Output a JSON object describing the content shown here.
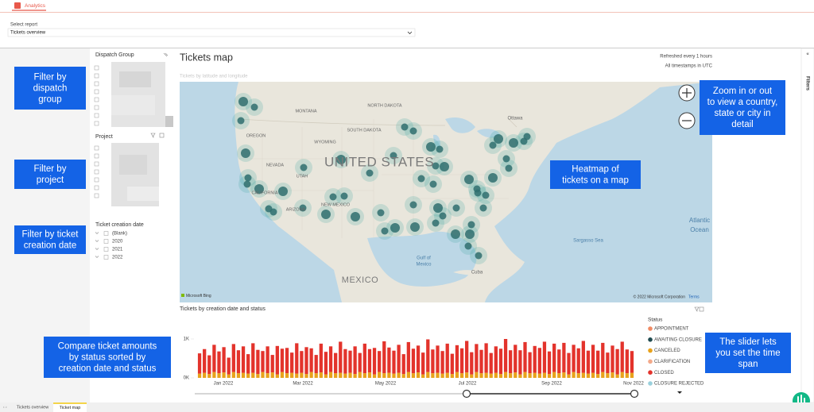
{
  "app_bar": {
    "tab": "Analytics"
  },
  "report_select": {
    "label": "Select report",
    "value": "Tickets overview"
  },
  "filters": {
    "dispatch_group": "Dispatch Group",
    "project": "Project",
    "date_title": "Ticket creation date",
    "date_items": [
      "(Blank)",
      "2020",
      "2021",
      "2022"
    ]
  },
  "map": {
    "title": "Tickets map",
    "refresh": "Refreshed every 1 hours",
    "timezone": "All timestamps in UTC",
    "subtitle": "Tickets by latitude and longitude",
    "labels": [
      "NORTH DAKOTA",
      "MONTANA",
      "SOUTH DAKOTA",
      "OREGON",
      "WYOMING",
      "NEVADA",
      "UNITED STATES",
      "CALIFORNIA",
      "UTAH",
      "ARIZONA",
      "NEW MEXICO",
      "MEXICO",
      "Gulf of",
      "Mexico",
      "Sargasso Sea",
      "Atlantic",
      "Ocean",
      "Ottawa",
      "Cuba"
    ],
    "bing": "Microsoft Bing",
    "attribution": "© 2022 Microsoft Corporation",
    "terms": "Terms"
  },
  "callouts": [
    {
      "lines": [
        "Filter by",
        "dispatch",
        "group"
      ]
    },
    {
      "lines": [
        "Filter by",
        "project"
      ]
    },
    {
      "lines": [
        "Filter by ticket",
        "creation date"
      ]
    },
    {
      "lines": [
        "Zoom in or out",
        "to view a country,",
        "state or city in",
        "detail"
      ]
    },
    {
      "lines": [
        "Heatmap of",
        "tickets on a map"
      ]
    },
    {
      "lines": [
        "Compare ticket amounts",
        "by status sorted by",
        "creation date and status"
      ]
    },
    {
      "lines": [
        "The slider lets",
        "you set the time",
        "span"
      ]
    }
  ],
  "chart_data": {
    "type": "bar",
    "stacked": true,
    "title": "Tickets by creation date and status",
    "x_labels": [
      "Jan 2022",
      "Mar 2022",
      "May 2022",
      "Jul 2022",
      "Sep 2022",
      "Nov 2022"
    ],
    "ylim": [
      0,
      1000
    ],
    "yticks": [
      {
        "value": 0,
        "label": "0K"
      },
      {
        "value": 1000,
        "label": "1K"
      }
    ],
    "legend_title": "Status",
    "series": [
      {
        "name": "APPOINTMENT",
        "color": "#f08a63"
      },
      {
        "name": "AWAITING CLOSURE",
        "color": "#1f4a4f"
      },
      {
        "name": "CANCELED",
        "color": "#e8a21c",
        "values": [
          110,
          130,
          100,
          150,
          120,
          140,
          90,
          150,
          120,
          130,
          110,
          130,
          100,
          150,
          120,
          140,
          90,
          150,
          120,
          130,
          110,
          130,
          100,
          150,
          120,
          140,
          90,
          150,
          120,
          130,
          110,
          130,
          100,
          150,
          120,
          140,
          90,
          150,
          120,
          130,
          110,
          130,
          100,
          150,
          120,
          140,
          90,
          150,
          120,
          130,
          110,
          130,
          100,
          150,
          120,
          140,
          90,
          150,
          120,
          130,
          110,
          130,
          100,
          150,
          120,
          140,
          90,
          150,
          120,
          130,
          110,
          130,
          100,
          150,
          120,
          140,
          90,
          150,
          120,
          130,
          110,
          130,
          100,
          150,
          120,
          140,
          90,
          150,
          120,
          130
        ]
      },
      {
        "name": "CLARIFICATION",
        "color": "#f3a98a"
      },
      {
        "name": "CLOSED",
        "color": "#e3332c",
        "values": [
          520,
          610,
          480,
          700,
          560,
          650,
          430,
          720,
          590,
          680,
          500,
          760,
          620,
          540,
          690,
          450,
          730,
          600,
          650,
          520,
          780,
          560,
          690,
          610,
          470,
          740,
          580,
          660,
          520,
          800,
          630,
          570,
          710,
          490,
          760,
          600,
          680,
          540,
          820,
          650,
          590,
          720,
          510,
          770,
          630,
          690,
          560,
          840,
          610,
          700,
          580,
          750,
          520,
          690,
          640,
          810,
          570,
          720,
          600,
          760,
          530,
          680,
          650,
          850,
          590,
          710,
          620,
          770,
          540,
          690,
          660,
          800,
          580,
          730,
          610,
          760,
          550,
          700,
          640,
          820,
          590,
          720,
          600,
          750,
          530,
          690,
          650,
          780,
          610,
          560
        ]
      },
      {
        "name": "CLOSURE REJECTED",
        "color": "#9ad0dc"
      }
    ]
  },
  "pages": [
    "Tickets overview",
    "Ticket map"
  ],
  "side_pane": "Filters"
}
